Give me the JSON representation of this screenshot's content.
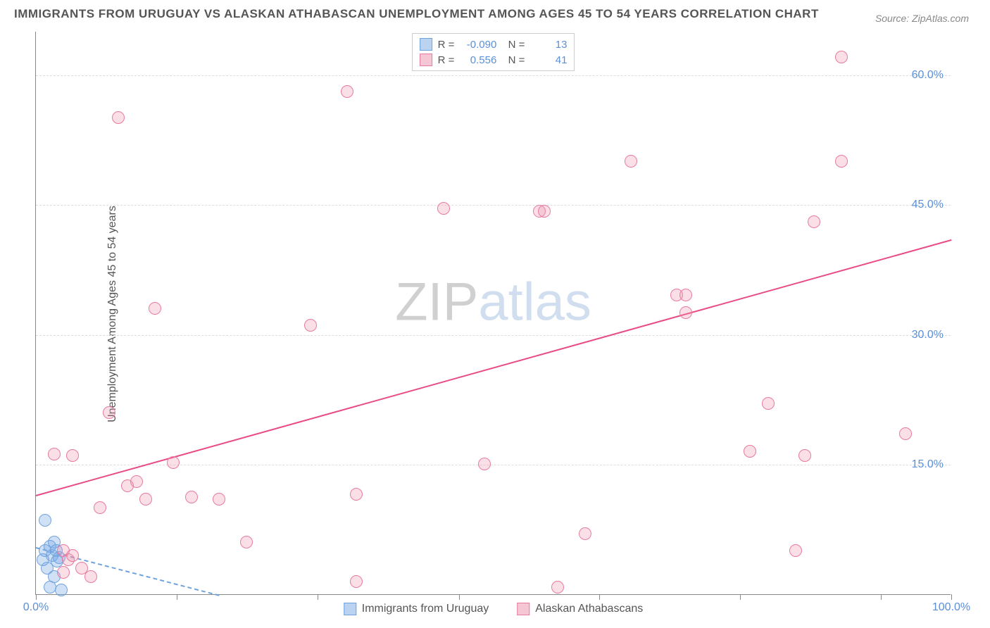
{
  "title": "IMMIGRANTS FROM URUGUAY VS ALASKAN ATHABASCAN UNEMPLOYMENT AMONG AGES 45 TO 54 YEARS CORRELATION CHART",
  "source": "Source: ZipAtlas.com",
  "ylabel": "Unemployment Among Ages 45 to 54 years",
  "watermark_a": "ZIP",
  "watermark_b": "atlas",
  "chart": {
    "type": "scatter",
    "xlim": [
      0,
      100
    ],
    "ylim": [
      0,
      65
    ],
    "xticks": [
      0,
      15.4,
      30.8,
      46.2,
      61.5,
      76.9,
      92.3,
      100
    ],
    "xtick_labels": {
      "0": "0.0%",
      "100": "100.0%"
    },
    "yticks": [
      15,
      30,
      45,
      60
    ],
    "ytick_labels": [
      "15.0%",
      "30.0%",
      "45.0%",
      "60.0%"
    ],
    "background_color": "#ffffff",
    "grid_color": "#dddddd",
    "axis_color": "#888888",
    "tick_label_color": "#5b8fd6",
    "marker_radius": 9,
    "marker_border_width": 1,
    "series": [
      {
        "name": "Immigrants from Uruguay",
        "fill": "rgba(120,170,230,0.35)",
        "stroke": "#6fa3dd",
        "swatch_fill": "#b9d3f0",
        "swatch_border": "#6fa3dd",
        "r_value": "-0.090",
        "n_value": "13",
        "trend": {
          "x1": 0,
          "y1": 5.5,
          "x2": 20,
          "y2": 0,
          "style": "dashed",
          "color": "#6fa3dd"
        },
        "points": [
          [
            1.0,
            8.5
          ],
          [
            1.0,
            5.0
          ],
          [
            1.5,
            5.5
          ],
          [
            1.8,
            4.5
          ],
          [
            2.0,
            6.0
          ],
          [
            2.2,
            5.0
          ],
          [
            2.5,
            4.2
          ],
          [
            1.2,
            3.0
          ],
          [
            2.0,
            2.0
          ],
          [
            2.8,
            0.5
          ],
          [
            1.5,
            0.8
          ],
          [
            0.8,
            4.0
          ],
          [
            2.3,
            3.8
          ]
        ]
      },
      {
        "name": "Alaskan Athabascans",
        "fill": "rgba(240,150,175,0.30)",
        "stroke": "#e77ba0",
        "swatch_fill": "#f6c6d4",
        "swatch_border": "#e77ba0",
        "r_value": "0.556",
        "n_value": "41",
        "trend": {
          "x1": 0,
          "y1": 11.5,
          "x2": 100,
          "y2": 41,
          "style": "solid",
          "color": "#e94b86"
        },
        "points": [
          [
            2,
            16.2
          ],
          [
            4,
            16.0
          ],
          [
            7,
            10.0
          ],
          [
            9,
            55.0
          ],
          [
            8,
            21.0
          ],
          [
            10,
            12.5
          ],
          [
            12,
            11.0
          ],
          [
            13,
            33.0
          ],
          [
            15,
            15.2
          ],
          [
            17,
            11.2
          ],
          [
            20,
            11.0
          ],
          [
            23,
            6.0
          ],
          [
            30,
            31.0
          ],
          [
            34,
            58.0
          ],
          [
            35,
            1.5
          ],
          [
            35,
            11.5
          ],
          [
            44.5,
            44.5
          ],
          [
            49,
            15.0
          ],
          [
            55,
            44.2
          ],
          [
            55.5,
            44.2
          ],
          [
            57,
            0.8
          ],
          [
            60,
            7.0
          ],
          [
            65,
            50.0
          ],
          [
            70,
            34.5
          ],
          [
            71,
            34.5
          ],
          [
            71,
            32.5
          ],
          [
            78,
            16.5
          ],
          [
            80,
            22.0
          ],
          [
            83,
            5.0
          ],
          [
            84,
            16.0
          ],
          [
            85,
            43.0
          ],
          [
            88,
            50.0
          ],
          [
            88,
            62.0
          ],
          [
            95,
            18.5
          ],
          [
            3,
            5.0
          ],
          [
            3.5,
            4.0
          ],
          [
            4,
            4.5
          ],
          [
            5,
            3.0
          ],
          [
            6,
            2.0
          ],
          [
            3,
            2.5
          ],
          [
            11,
            13.0
          ]
        ]
      }
    ]
  },
  "bottom_legend": [
    {
      "label": "Immigrants from Uruguay",
      "fill": "#b9d3f0",
      "border": "#6fa3dd"
    },
    {
      "label": "Alaskan Athabascans",
      "fill": "#f6c6d4",
      "border": "#e77ba0"
    }
  ]
}
